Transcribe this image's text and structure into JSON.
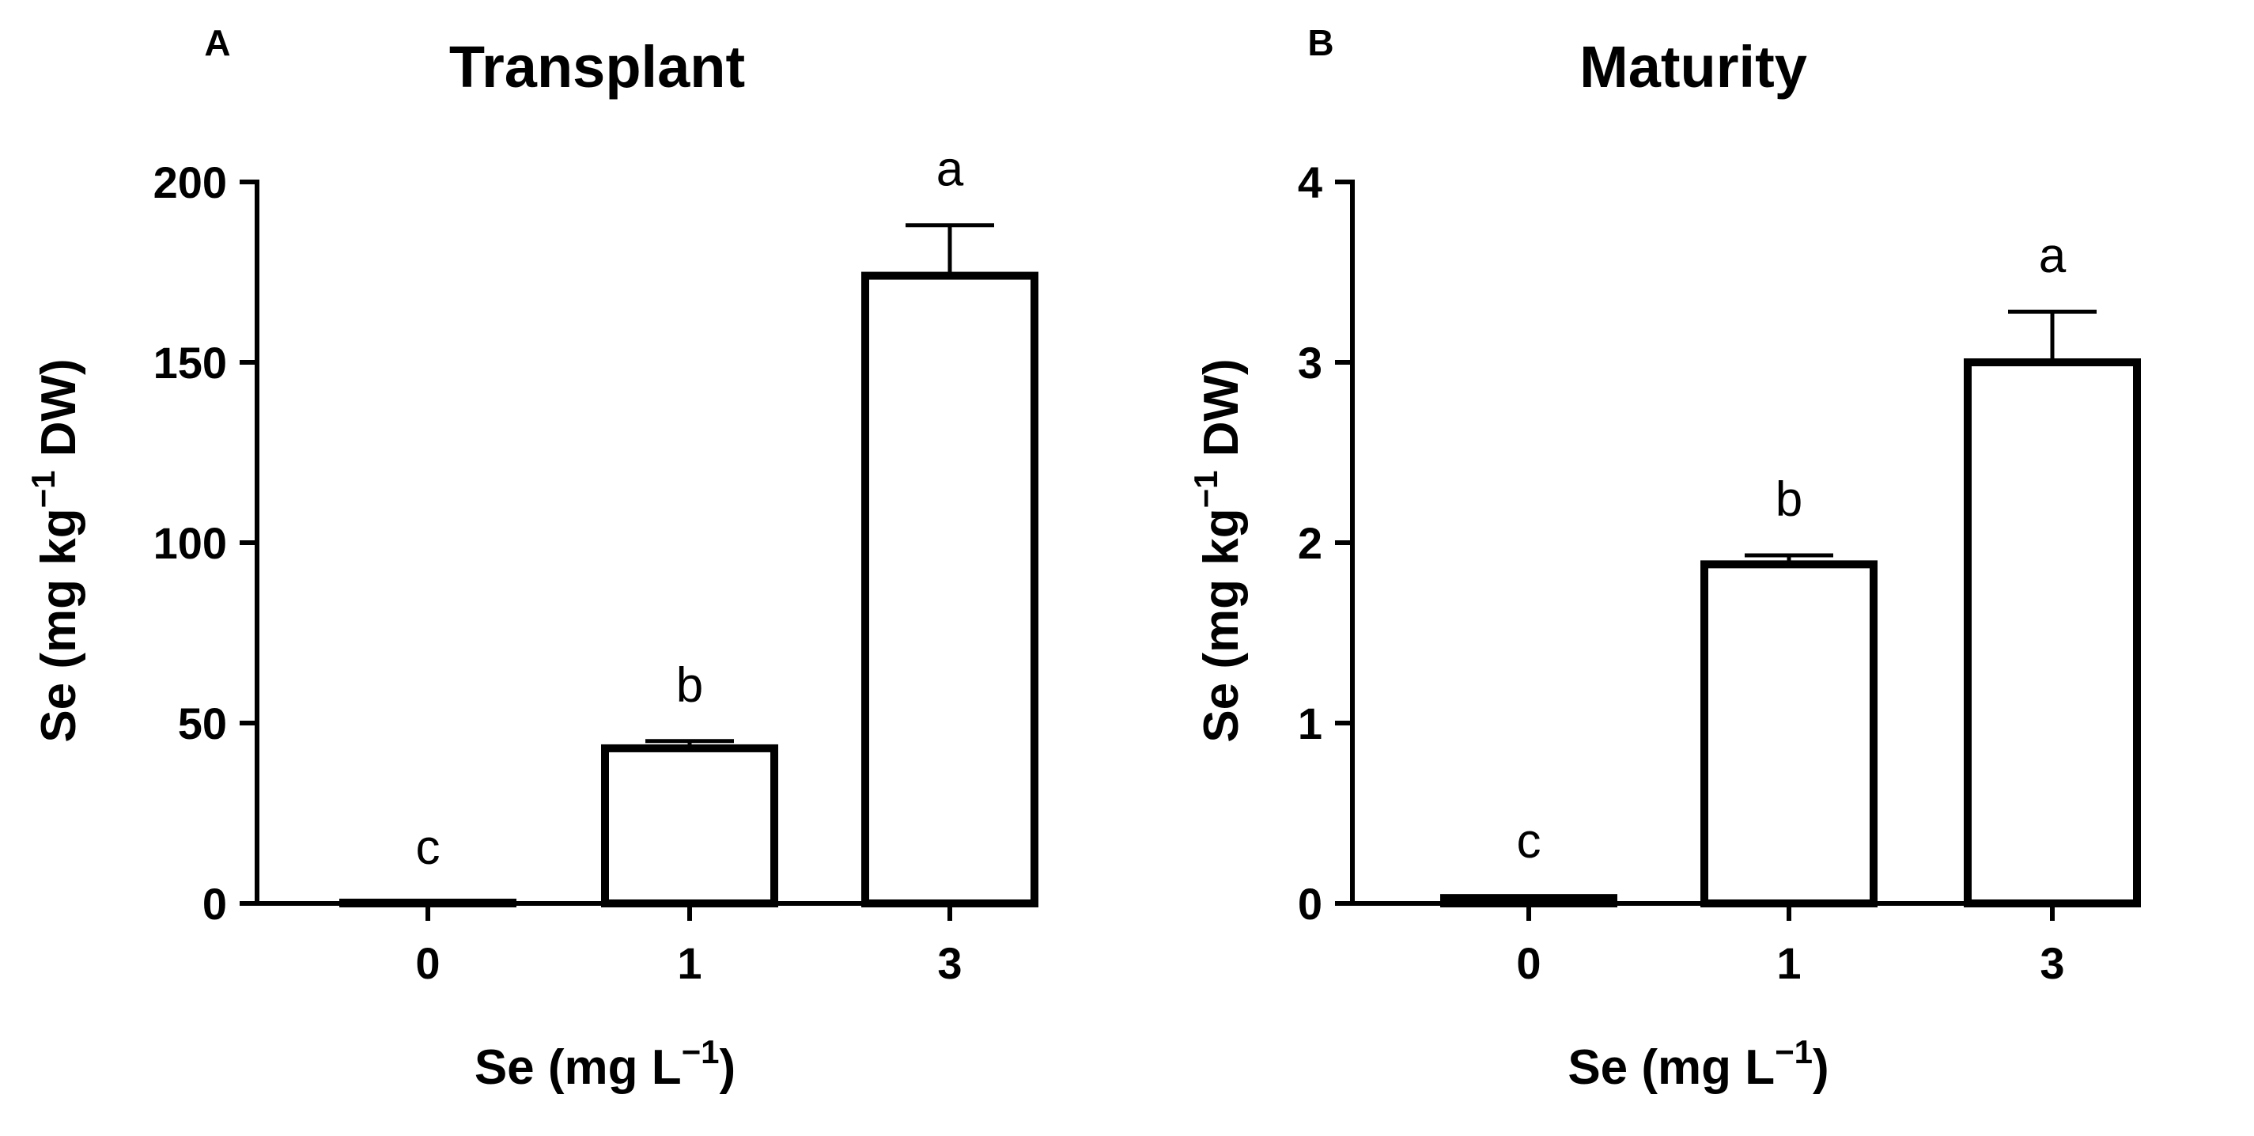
{
  "chart_data": [
    {
      "type": "bar",
      "panel_label": "A",
      "title": "Transplant",
      "categories": [
        "0",
        "1",
        "3"
      ],
      "values": [
        0,
        43,
        174
      ],
      "errors": [
        0,
        2,
        14
      ],
      "letters": [
        "c",
        "b",
        "a"
      ],
      "ylim": [
        0,
        200
      ],
      "yticks": [
        0,
        50,
        100,
        150,
        200
      ],
      "ylabel": {
        "main": "Se (mg kg",
        "sup": "−1",
        "tail": " DW)"
      },
      "xlabel": {
        "main": "Se (mg L",
        "sup": "−1",
        "tail": ")"
      },
      "grid": false,
      "legend": "none"
    },
    {
      "type": "bar",
      "panel_label": "B",
      "title": "Maturity",
      "categories": [
        "0",
        "1",
        "3"
      ],
      "values": [
        0.03,
        1.88,
        3.0
      ],
      "errors": [
        0.005,
        0.05,
        0.28
      ],
      "letters": [
        "c",
        "b",
        "a"
      ],
      "ylim": [
        0,
        4
      ],
      "yticks": [
        0,
        1,
        2,
        3,
        4
      ],
      "ylabel": {
        "main": "Se (mg kg",
        "sup": "−1",
        "tail": " DW)"
      },
      "xlabel": {
        "main": "Se (mg L",
        "sup": "−1",
        "tail": ")"
      },
      "grid": false,
      "legend": "none"
    }
  ]
}
